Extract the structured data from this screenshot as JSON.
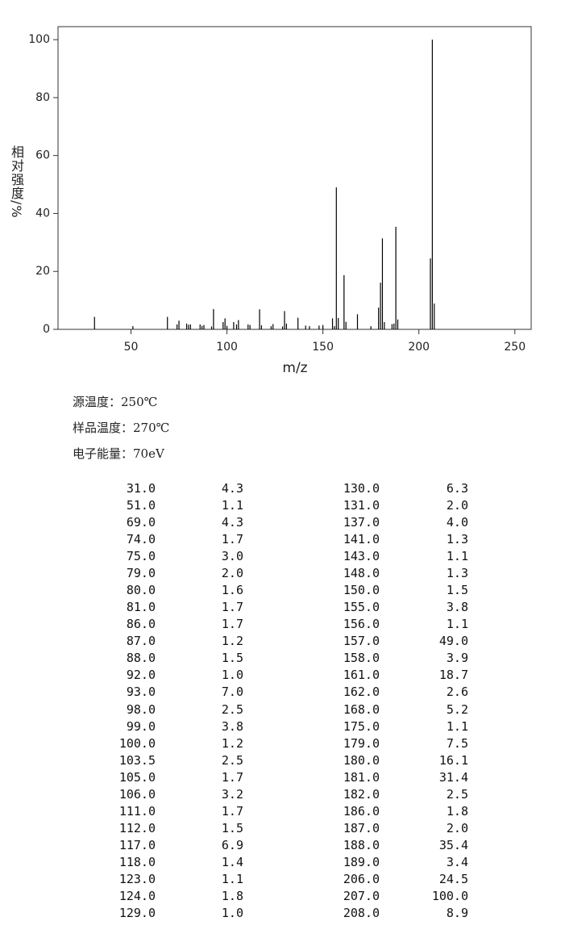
{
  "chart_data": {
    "type": "bar",
    "x_label": "m/z",
    "y_label": "相对强度/%",
    "x": [
      31,
      51,
      69,
      74,
      75,
      79,
      80,
      81,
      86,
      87,
      88,
      92,
      93,
      98,
      99,
      100,
      103.5,
      105,
      106,
      111,
      112,
      117,
      118,
      123,
      124,
      129,
      130,
      131,
      137,
      141,
      143,
      148,
      150,
      155,
      156,
      157,
      158,
      161,
      162,
      168,
      175,
      179,
      180,
      181,
      182,
      186,
      187,
      188,
      189,
      206,
      207,
      208
    ],
    "x_labels": [
      "31.0",
      "51.0",
      "69.0",
      "74.0",
      "75.0",
      "79.0",
      "80.0",
      "81.0",
      "86.0",
      "87.0",
      "88.0",
      "92.0",
      "93.0",
      "98.0",
      "99.0",
      "100.0",
      "103.5",
      "105.0",
      "106.0",
      "111.0",
      "112.0",
      "117.0",
      "118.0",
      "123.0",
      "124.0",
      "129.0",
      "130.0",
      "131.0",
      "137.0",
      "141.0",
      "143.0",
      "148.0",
      "150.0",
      "155.0",
      "156.0",
      "157.0",
      "158.0",
      "161.0",
      "162.0",
      "168.0",
      "175.0",
      "179.0",
      "180.0",
      "181.0",
      "182.0",
      "186.0",
      "187.0",
      "188.0",
      "189.0",
      "206.0",
      "207.0",
      "208.0"
    ],
    "values": [
      4.3,
      1.1,
      4.3,
      1.7,
      3.0,
      2.0,
      1.6,
      1.7,
      1.7,
      1.2,
      1.5,
      1.0,
      7.0,
      2.5,
      3.8,
      1.2,
      2.5,
      1.7,
      3.2,
      1.7,
      1.5,
      6.9,
      1.4,
      1.1,
      1.8,
      1.0,
      6.3,
      2.0,
      4.0,
      1.3,
      1.1,
      1.3,
      1.5,
      3.8,
      1.1,
      49.0,
      3.9,
      18.7,
      2.6,
      5.2,
      1.1,
      7.5,
      16.1,
      31.4,
      2.5,
      1.8,
      2.0,
      35.4,
      3.4,
      24.5,
      100.0,
      8.9
    ],
    "value_labels": [
      "4.3",
      "1.1",
      "4.3",
      "1.7",
      "3.0",
      "2.0",
      "1.6",
      "1.7",
      "1.7",
      "1.2",
      "1.5",
      "1.0",
      "7.0",
      "2.5",
      "3.8",
      "1.2",
      "2.5",
      "1.7",
      "3.2",
      "1.7",
      "1.5",
      "6.9",
      "1.4",
      "1.1",
      "1.8",
      "1.0",
      "6.3",
      "2.0",
      "4.0",
      "1.3",
      "1.1",
      "1.3",
      "1.5",
      "3.8",
      "1.1",
      "49.0",
      "3.9",
      "18.7",
      "2.6",
      "5.2",
      "1.1",
      "7.5",
      "16.1",
      "31.4",
      "2.5",
      "1.8",
      "2.0",
      "35.4",
      "3.4",
      "24.5",
      "100.0",
      "8.9"
    ],
    "color": "#000000",
    "xlim": [
      12,
      258.5
    ],
    "ylim": [
      0,
      104.5
    ],
    "xticks": [
      50,
      100,
      150,
      200,
      250
    ],
    "yticks": [
      0,
      20,
      40,
      60,
      80,
      100
    ]
  },
  "conditions": [
    "源温度：250℃",
    "样品温度：270℃",
    "电子能量：70eV"
  ]
}
